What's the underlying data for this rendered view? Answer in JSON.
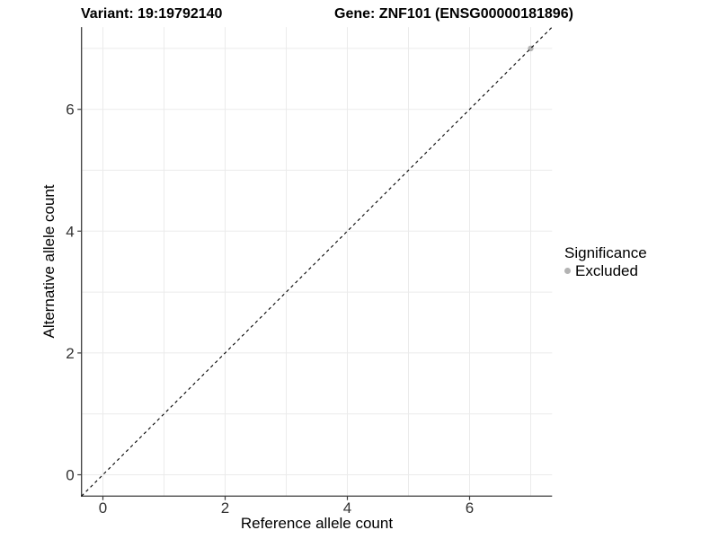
{
  "titles": {
    "variant": "Variant: 19:19792140",
    "gene": "Gene: ZNF101 (ENSG00000181896)"
  },
  "chart_data": {
    "type": "scatter",
    "xlabel": "Reference allele count",
    "ylabel": "Alternative allele count",
    "xlim": [
      -0.35,
      7.35
    ],
    "ylim": [
      -0.35,
      7.35
    ],
    "xticks": [
      0,
      2,
      4,
      6
    ],
    "yticks": [
      0,
      2,
      4,
      6
    ],
    "grid_positions": [
      0,
      1,
      2,
      3,
      4,
      5,
      6,
      7
    ],
    "grid": "on",
    "points": [
      {
        "x": 7,
        "y": 7,
        "series": "Excluded"
      }
    ],
    "identity_line": {
      "slope": 1,
      "intercept": 0,
      "style": "dashed",
      "color": "#000000"
    },
    "legend": {
      "position": "right",
      "title": "Significance",
      "items": [
        {
          "label": "Excluded",
          "color": "#b3b3b3"
        }
      ]
    },
    "colors": {
      "point": "#b3b3b3",
      "gridline": "#ebebeb",
      "axis_line": "#3c3c3c",
      "tick_label": "#333333",
      "text": "#000000"
    }
  }
}
